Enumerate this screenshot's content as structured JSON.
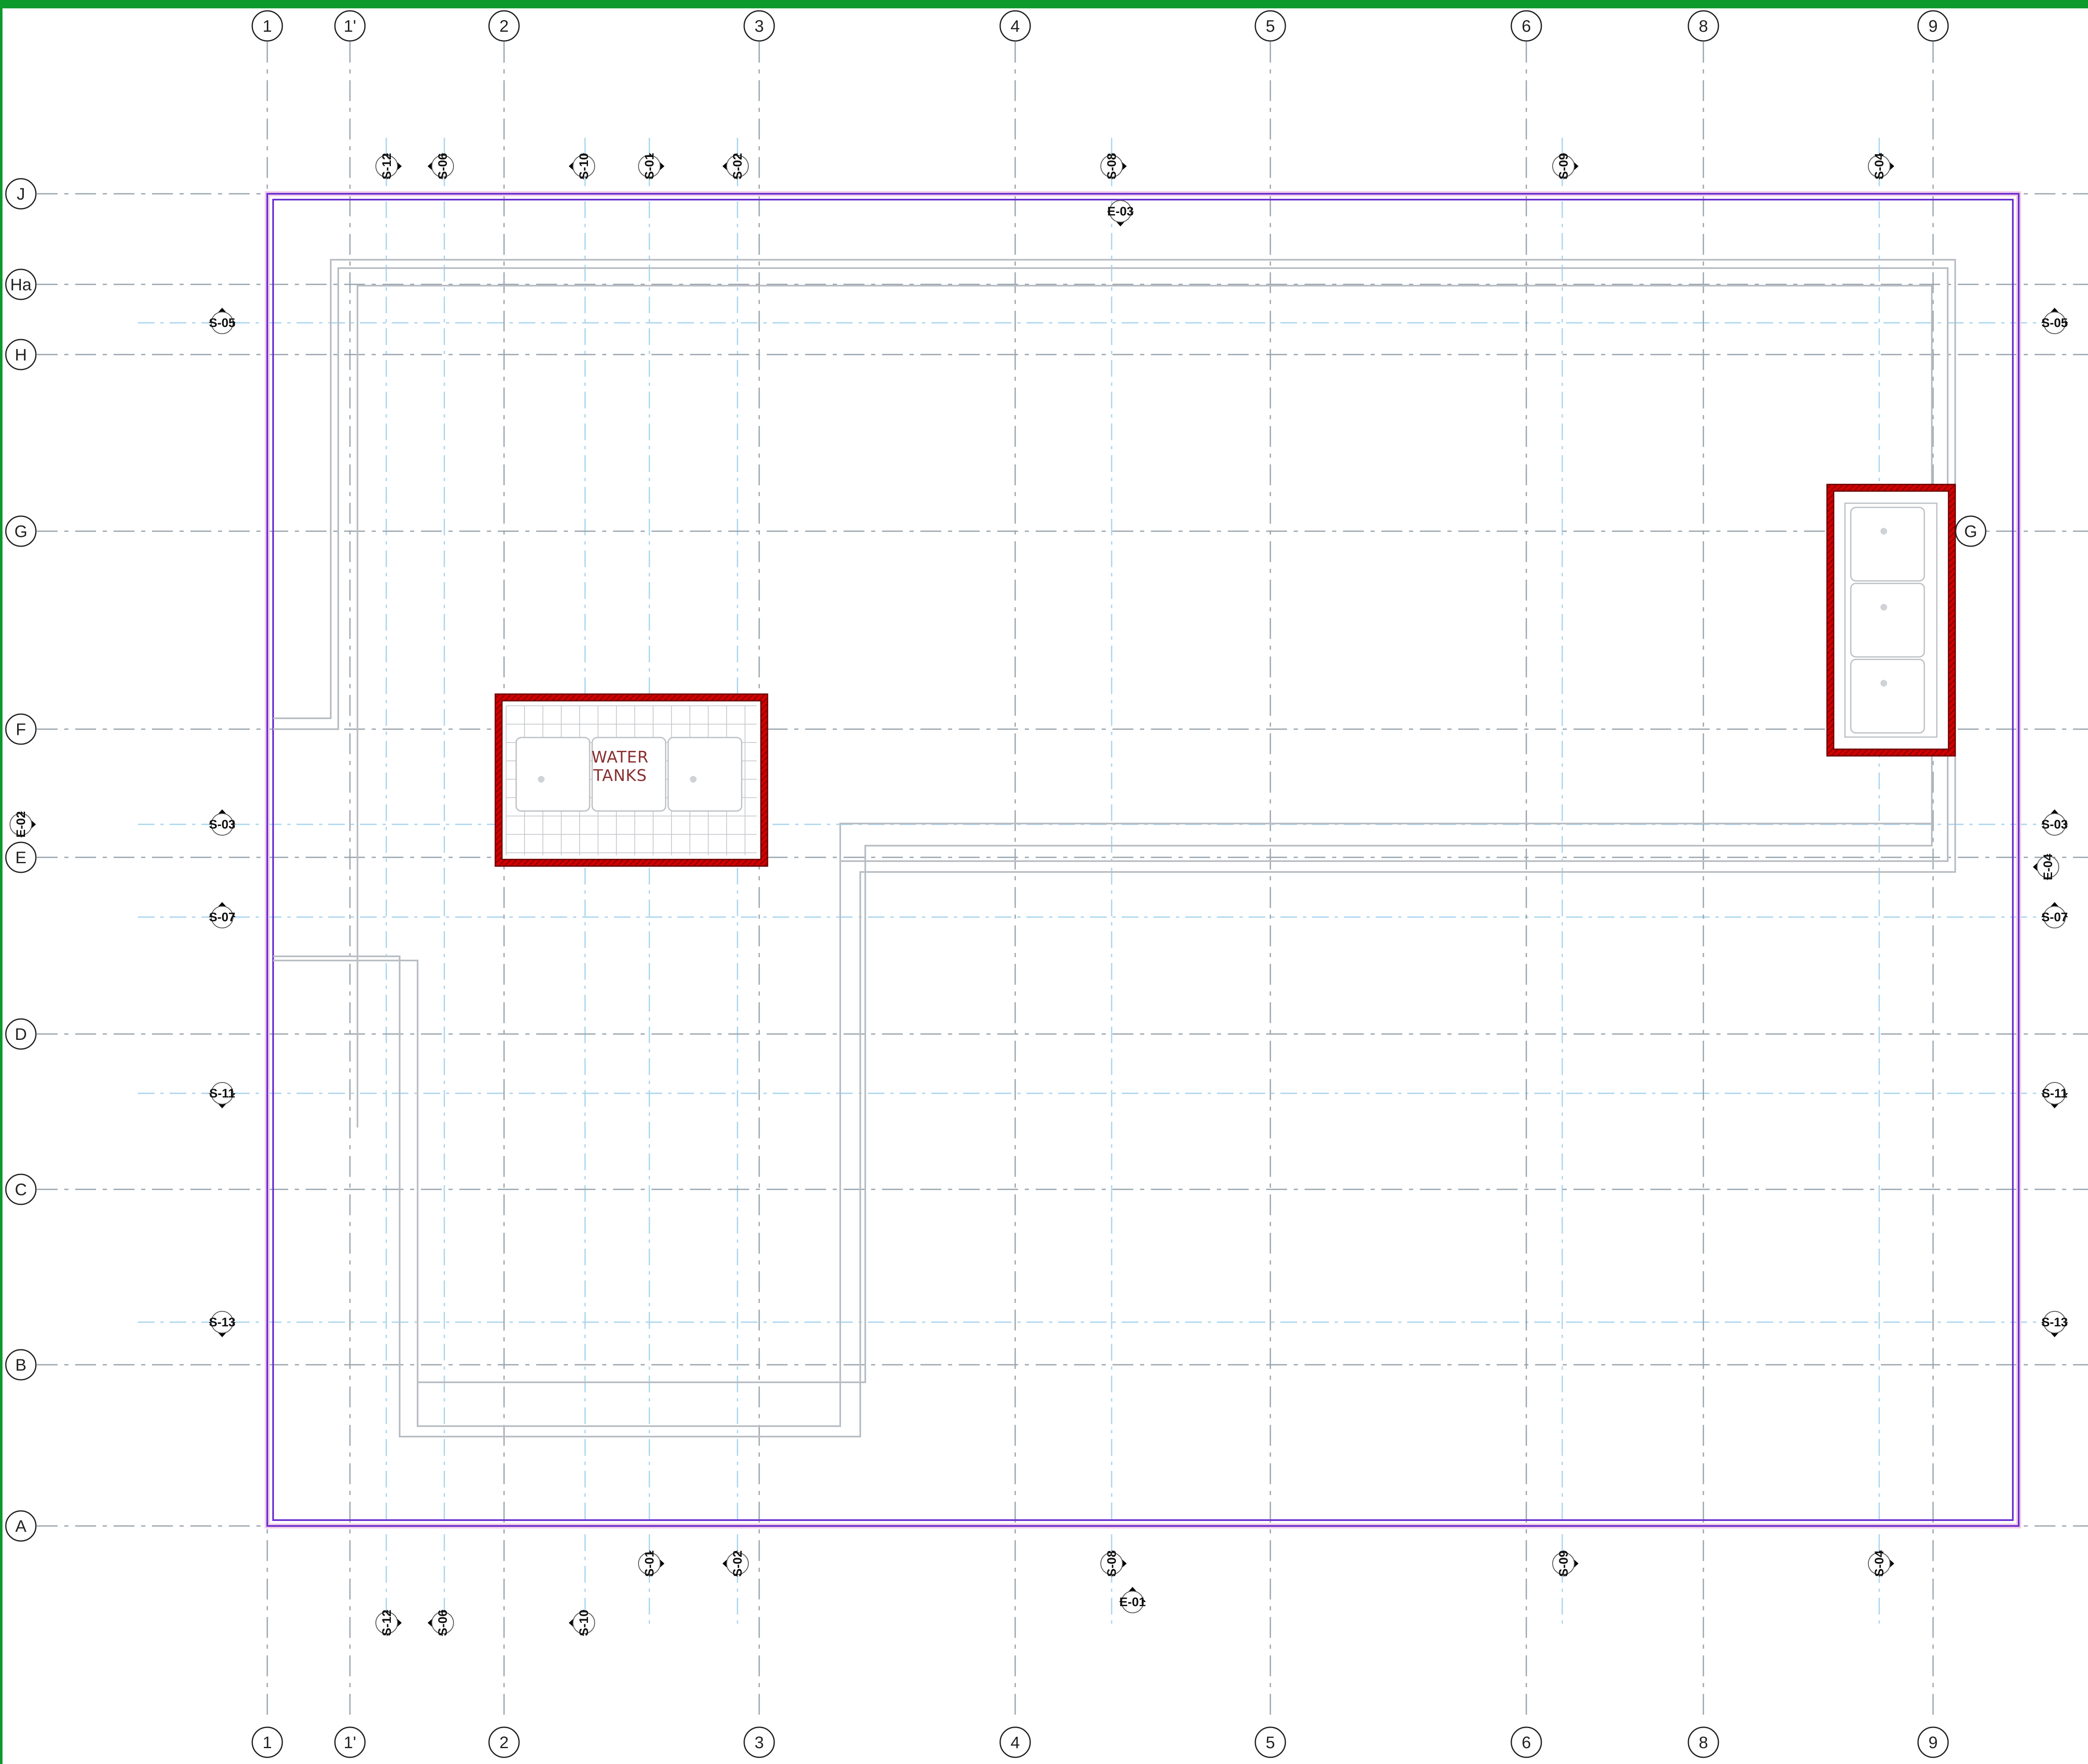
{
  "colors": {
    "top_bar": "#0d9a2c",
    "left_bar": "#0d9a2c",
    "grid_line": "#9aa4ad",
    "aux_line": "#a8d4ee",
    "slab_outline": "#6a2fd0",
    "slab_fill": "#f1cce9",
    "core_wall": "#d00000",
    "wall_line": "#b9bec4",
    "tag_fill": "#000000"
  },
  "grid_vertical": [
    {
      "label": "1"
    },
    {
      "label": "1'"
    },
    {
      "label": "2"
    },
    {
      "label": "3"
    },
    {
      "label": "4"
    },
    {
      "label": "5"
    },
    {
      "label": "6"
    },
    {
      "label": "8"
    },
    {
      "label": "9"
    }
  ],
  "grid_horizontal": [
    {
      "label": "J"
    },
    {
      "label": "Ha"
    },
    {
      "label": "H"
    },
    {
      "label": "G"
    },
    {
      "label": "F"
    },
    {
      "label": "E"
    },
    {
      "label": "D"
    },
    {
      "label": "C"
    },
    {
      "label": "B"
    },
    {
      "label": "A"
    }
  ],
  "extra_grid_bubble": {
    "label": "G"
  },
  "section_tags": {
    "top": [
      "S-12",
      "S-06",
      "S-10",
      "S-01",
      "S-02",
      "S-08",
      "S-09",
      "S-04"
    ],
    "elevation_top": "E-03",
    "bottom_row1": [
      "S-01",
      "S-02",
      "S-08",
      "S-09",
      "S-04"
    ],
    "elevation_bottom": "E-01",
    "bottom_row2": [
      "S-12",
      "S-06",
      "S-10"
    ],
    "left": [
      "S-05",
      "S-03",
      "S-07",
      "S-11",
      "S-13"
    ],
    "elevation_left": "E-02",
    "right": [
      "S-05",
      "S-03",
      "S-07",
      "S-11",
      "S-13"
    ],
    "elevation_right": "E-04"
  },
  "water_tank_label": [
    "WATER",
    "TANKS"
  ]
}
